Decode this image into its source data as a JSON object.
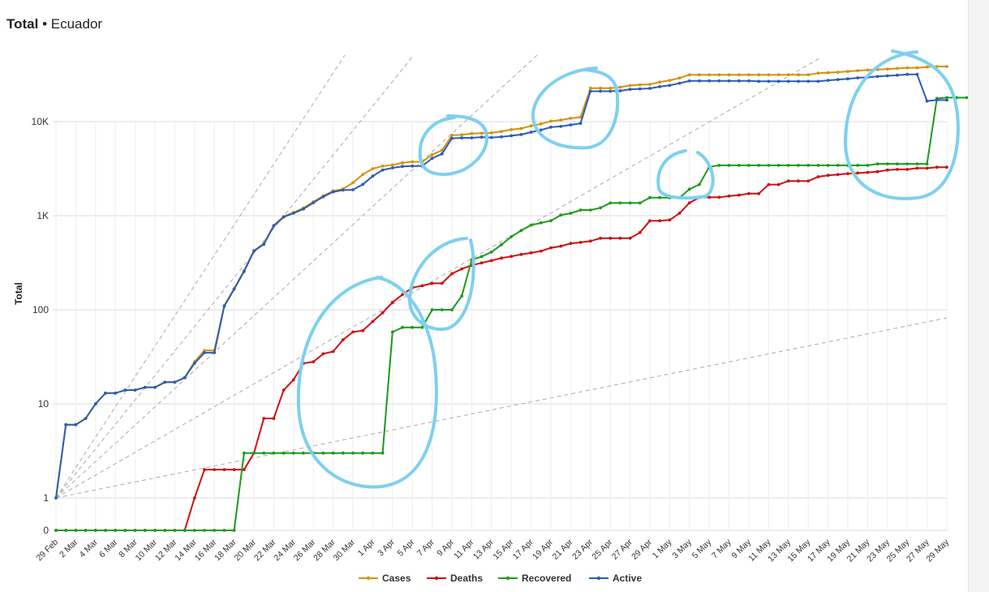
{
  "header": {
    "title_bold": "Total",
    "title_sep": " • ",
    "title_rest": "Ecuador"
  },
  "chart_data": {
    "type": "line",
    "title": "Total • Ecuador",
    "ylabel": "Total",
    "xlabel": "",
    "yscale": "log (with 0)",
    "ylim": [
      0,
      60000
    ],
    "yticks": [
      "0",
      "1",
      "10",
      "100",
      "1K",
      "10K"
    ],
    "xticks": [
      "29 Feb",
      "2 Mar",
      "4 Mar",
      "6 Mar",
      "8 Mar",
      "10 Mar",
      "12 Mar",
      "14 Mar",
      "16 Mar",
      "18 Mar",
      "20 Mar",
      "22 Mar",
      "24 Mar",
      "26 Mar",
      "28 Mar",
      "30 Mar",
      "1 Apr",
      "3 Apr",
      "5 Apr",
      "7 Apr",
      "9 Apr",
      "11 Apr",
      "13 Apr",
      "15 Apr",
      "17 Apr",
      "19 Apr",
      "21 Apr",
      "23 Apr",
      "25 Apr",
      "27 Apr",
      "29 Apr",
      "1 May",
      "3 May",
      "5 May",
      "7 May",
      "9 May",
      "11 May",
      "13 May",
      "15 May",
      "17 May",
      "19 May",
      "21 May",
      "23 May",
      "25 May",
      "27 May",
      "29 May"
    ],
    "grid": true,
    "legend_position": "bottom-center",
    "x_start": "2020-02-29",
    "x_end": "2020-05-29",
    "series": [
      {
        "name": "Cases",
        "color": "#d4920c",
        "values": [
          1,
          6,
          6,
          7,
          10,
          13,
          13,
          14,
          14,
          15,
          15,
          17,
          17,
          19,
          28,
          37,
          37,
          111,
          168,
          260,
          426,
          506,
          789,
          981,
          1082,
          1211,
          1403,
          1627,
          1835,
          1924,
          2240,
          2748,
          3163,
          3368,
          3465,
          3646,
          3747,
          3747,
          4450,
          4965,
          7161,
          7257,
          7466,
          7529,
          7603,
          7858,
          8225,
          8450,
          9022,
          9468,
          10128,
          10398,
          10850,
          11183,
          22719,
          22719,
          22719,
          23240,
          24258,
          24675,
          24934,
          26336,
          27464,
          29071,
          31467,
          31467,
          31467,
          31467,
          31467,
          31467,
          31467,
          31467,
          31467,
          31467,
          31467,
          31467,
          31467,
          32763,
          33182,
          33582,
          34151,
          34854,
          35306,
          35828,
          36258,
          36756,
          37355,
          37355,
          38103,
          38571,
          38571
        ]
      },
      {
        "name": "Deaths",
        "color": "#cc1111",
        "values": [
          0,
          0,
          0,
          0,
          0,
          0,
          0,
          0,
          0,
          0,
          0,
          0,
          0,
          0,
          1,
          2,
          2,
          2,
          2,
          2,
          3,
          7,
          7,
          14,
          18,
          27,
          28,
          34,
          36,
          48,
          58,
          60,
          75,
          93,
          120,
          145,
          172,
          180,
          191,
          191,
          242,
          272,
          297,
          315,
          333,
          355,
          369,
          388,
          403,
          421,
          456,
          474,
          507,
          520,
          537,
          576,
          576,
          576,
          576,
          663,
          883,
          883,
          900,
          1063,
          1371,
          1564,
          1569,
          1569,
          1618,
          1654,
          1717,
          1717,
          2145,
          2145,
          2338,
          2338,
          2338,
          2594,
          2688,
          2736,
          2799,
          2839,
          2888,
          2939,
          3056,
          3108,
          3108,
          3203,
          3203,
          3275,
          3275
        ]
      },
      {
        "name": "Recovered",
        "color": "#1d9a1d",
        "values": [
          0,
          0,
          0,
          0,
          0,
          0,
          0,
          0,
          0,
          0,
          0,
          0,
          0,
          0,
          0,
          0,
          0,
          0,
          0,
          3,
          3,
          3,
          3,
          3,
          3,
          3,
          3,
          3,
          3,
          3,
          3,
          3,
          3,
          3,
          58,
          65,
          65,
          65,
          100,
          100,
          100,
          140,
          340,
          368,
          411,
          491,
          598,
          697,
          795,
          839,
          885,
          1017,
          1061,
          1150,
          1150,
          1213,
          1366,
          1366,
          1366,
          1366,
          1557,
          1557,
          1557,
          1557,
          1913,
          2146,
          3300,
          3433,
          3433,
          3433,
          3433,
          3433,
          3433,
          3433,
          3433,
          3433,
          3433,
          3433,
          3433,
          3433,
          3433,
          3433,
          3433,
          3557,
          3557,
          3557,
          3557,
          3557,
          3557,
          17651,
          18003,
          18003,
          18003
        ]
      },
      {
        "name": "Active",
        "color": "#2b5db5",
        "values": [
          1,
          6,
          6,
          7,
          10,
          13,
          13,
          14,
          14,
          15,
          15,
          17,
          17,
          19,
          27,
          35,
          35,
          109,
          166,
          255,
          421,
          497,
          779,
          968,
          1064,
          1180,
          1374,
          1592,
          1791,
          1872,
          1886,
          2150,
          2632,
          3063,
          3226,
          3340,
          3371,
          3371,
          4076,
          4549,
          6650,
          6721,
          6726,
          6839,
          6773,
          6895,
          7077,
          7288,
          7725,
          8154,
          8732,
          8887,
          9230,
          9588,
          21061,
          21061,
          21061,
          21264,
          22063,
          22284,
          22564,
          23534,
          24305,
          25613,
          27110,
          27110,
          27110,
          27110,
          27110,
          27110,
          27110,
          26836,
          26836,
          26836,
          26836,
          26836,
          26836,
          26836,
          27489,
          28000,
          28500,
          29187,
          29646,
          30204,
          30710,
          31206,
          31809,
          31809,
          16547,
          16977,
          16926
        ]
      }
    ]
  },
  "legend": {
    "items": [
      "Cases",
      "Deaths",
      "Recovered",
      "Active"
    ]
  }
}
